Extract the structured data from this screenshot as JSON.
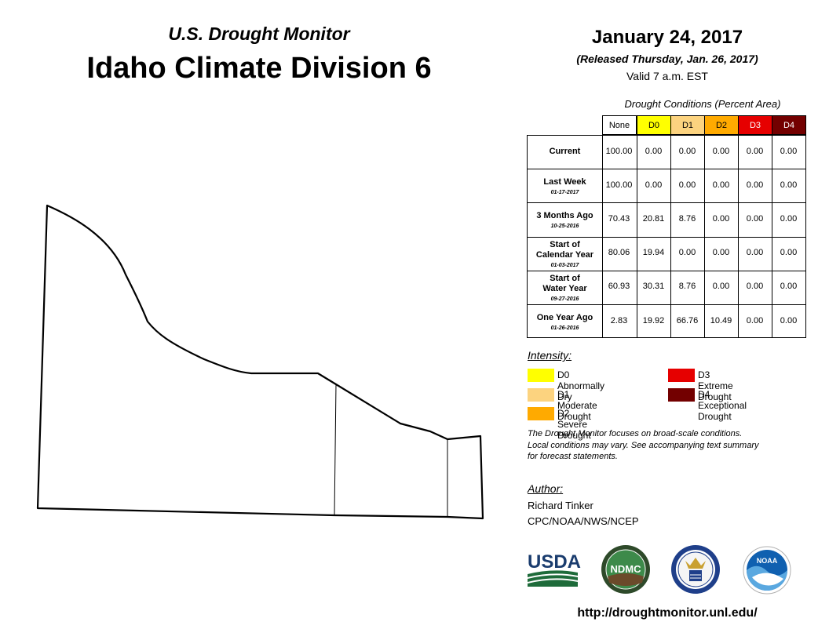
{
  "header": {
    "subtitle": "U.S. Drought Monitor",
    "title": "Idaho Climate Division 6",
    "date": "January 24, 2017",
    "released": "(Released Thursday, Jan. 26, 2017)",
    "valid": "Valid 7 a.m. EST"
  },
  "table": {
    "caption": "Drought Conditions (Percent Area)",
    "columns": [
      {
        "label": "None",
        "color": "#ffffff",
        "text_color": "#000000"
      },
      {
        "label": "D0",
        "color": "#ffff00",
        "text_color": "#000000"
      },
      {
        "label": "D1",
        "color": "#fcd37f",
        "text_color": "#000000"
      },
      {
        "label": "D2",
        "color": "#ffaa00",
        "text_color": "#000000"
      },
      {
        "label": "D3",
        "color": "#e60000",
        "text_color": "#ffffff"
      },
      {
        "label": "D4",
        "color": "#730000",
        "text_color": "#ffffff"
      }
    ],
    "rows": [
      {
        "label_lines": [
          "Current"
        ],
        "date": "",
        "values": [
          "100.00",
          "0.00",
          "0.00",
          "0.00",
          "0.00",
          "0.00"
        ]
      },
      {
        "label_lines": [
          "Last Week"
        ],
        "date": "01-17-2017",
        "values": [
          "100.00",
          "0.00",
          "0.00",
          "0.00",
          "0.00",
          "0.00"
        ]
      },
      {
        "label_lines": [
          "3 Months Ago"
        ],
        "date": "10-25-2016",
        "values": [
          "70.43",
          "20.81",
          "8.76",
          "0.00",
          "0.00",
          "0.00"
        ]
      },
      {
        "label_lines": [
          "Start of",
          "Calendar Year"
        ],
        "date": "01-03-2017",
        "values": [
          "80.06",
          "19.94",
          "0.00",
          "0.00",
          "0.00",
          "0.00"
        ]
      },
      {
        "label_lines": [
          "Start of",
          "Water Year"
        ],
        "date": "09-27-2016",
        "values": [
          "60.93",
          "30.31",
          "8.76",
          "0.00",
          "0.00",
          "0.00"
        ]
      },
      {
        "label_lines": [
          "One Year Ago"
        ],
        "date": "01-26-2016",
        "values": [
          "2.83",
          "19.92",
          "66.76",
          "10.49",
          "0.00",
          "0.00"
        ]
      }
    ]
  },
  "legend": {
    "title": "Intensity:",
    "items": [
      {
        "label": "D0 Abnormally Dry",
        "color": "#ffff00"
      },
      {
        "label": "D1 Moderate Drought",
        "color": "#fcd37f"
      },
      {
        "label": "D2 Severe Drought",
        "color": "#ffaa00"
      },
      {
        "label": "D3 Extreme Drought",
        "color": "#e60000"
      },
      {
        "label": "D4 Exceptional Drought",
        "color": "#730000"
      }
    ]
  },
  "disclaimer": {
    "lines": [
      "The Drought Monitor focuses on broad-scale conditions.",
      "Local conditions may vary. See accompanying text summary",
      "for forecast statements."
    ]
  },
  "author": {
    "title": "Author:",
    "name": "Richard Tinker",
    "org": "CPC/NOAA/NWS/NCEP"
  },
  "logos": {
    "usda": "USDA",
    "ndmc": "NDMC",
    "noaa": "NOAA"
  },
  "url": "http://droughtmonitor.unl.edu/"
}
